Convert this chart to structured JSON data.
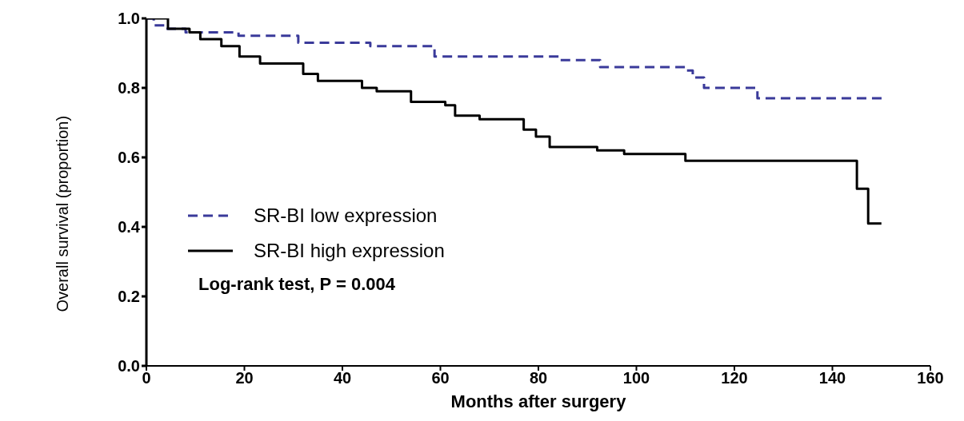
{
  "chart_data": {
    "type": "step",
    "xlabel": "Months after surgery",
    "ylabel": "Overall survival (proportion)",
    "xlim": [
      0,
      160
    ],
    "xticks": [
      0,
      20,
      40,
      60,
      80,
      100,
      120,
      140,
      160
    ],
    "ylim": [
      0,
      1
    ],
    "yticks": [
      {
        "value": 0,
        "label": "0.0"
      },
      {
        "value": 0.2,
        "label": "0.2"
      },
      {
        "value": 0.4,
        "label": "0.4"
      },
      {
        "value": 0.6,
        "label": "0.6"
      },
      {
        "value": 0.8,
        "label": "0.8"
      },
      {
        "value": 1,
        "label": "1.0"
      }
    ],
    "grid": false,
    "legend": "bottom left",
    "annotations": [
      "Log-rank test, P = 0.004"
    ],
    "series": [
      {
        "name": "SR-BI low expression",
        "color": "#3a3a9a",
        "line_style": "dashed",
        "x": [
          0,
          1.5,
          4,
          8,
          18.8,
          31,
          45.7,
          58.8,
          84.4,
          92.6,
          110,
          111.5,
          113.8,
          124.7,
          150.5
        ],
        "values": [
          1.0,
          0.98,
          0.97,
          0.96,
          0.95,
          0.93,
          0.92,
          0.89,
          0.88,
          0.86,
          0.85,
          0.83,
          0.8,
          0.77,
          0.77
        ]
      },
      {
        "name": "SR-BI high expression",
        "color": "#000000",
        "line_style": "solid",
        "x": [
          0,
          4.4,
          8.8,
          11,
          15.3,
          19,
          23.2,
          32,
          35,
          44,
          47,
          54,
          61,
          63,
          68,
          77,
          79.5,
          82.3,
          92,
          97.5,
          110,
          145,
          147.3,
          150
        ],
        "values": [
          1.0,
          0.97,
          0.96,
          0.94,
          0.92,
          0.89,
          0.87,
          0.84,
          0.82,
          0.8,
          0.79,
          0.76,
          0.75,
          0.72,
          0.71,
          0.68,
          0.66,
          0.63,
          0.62,
          0.61,
          0.59,
          0.51,
          0.41,
          0.41
        ]
      }
    ]
  }
}
